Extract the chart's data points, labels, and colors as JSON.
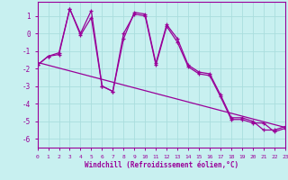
{
  "bg_color": "#c8f0f0",
  "line_color": "#990099",
  "grid_color": "#aadddd",
  "xlabel": "Windchill (Refroidissement éolien,°C)",
  "xlabel_color": "#990099",
  "tick_color": "#990099",
  "xlim": [
    0,
    23
  ],
  "ylim": [
    -6.5,
    1.8
  ],
  "yticks": [
    1,
    0,
    -1,
    -2,
    -3,
    -4,
    -5,
    -6
  ],
  "xticks": [
    0,
    1,
    2,
    3,
    4,
    5,
    6,
    7,
    8,
    9,
    10,
    11,
    12,
    13,
    14,
    15,
    16,
    17,
    18,
    19,
    20,
    21,
    22,
    23
  ],
  "s1_x": [
    0,
    1,
    2,
    3,
    4,
    5,
    6,
    7,
    8,
    9,
    10,
    11,
    12,
    13,
    14,
    15,
    16,
    17,
    18,
    19,
    20,
    21,
    22,
    23
  ],
  "s1_y": [
    -1.8,
    -1.3,
    -1.1,
    1.4,
    0.0,
    1.3,
    -3.0,
    -3.3,
    -0.3,
    1.2,
    1.1,
    -1.7,
    0.5,
    -0.3,
    -1.8,
    -2.2,
    -2.3,
    -3.5,
    -4.8,
    -4.8,
    -5.0,
    -5.5,
    -5.5,
    -5.3
  ],
  "s2_x": [
    0,
    1,
    2,
    3,
    4,
    5,
    6,
    7,
    8,
    9,
    10,
    11,
    12,
    13,
    14,
    15,
    16,
    17,
    18,
    19,
    20,
    21,
    22,
    23
  ],
  "s2_y": [
    -1.8,
    -1.3,
    -1.2,
    1.4,
    -0.1,
    0.9,
    -3.0,
    -3.3,
    0.0,
    1.1,
    1.0,
    -1.8,
    0.4,
    -0.5,
    -1.9,
    -2.3,
    -2.4,
    -3.6,
    -4.9,
    -4.9,
    -5.1,
    -5.1,
    -5.6,
    -5.4
  ],
  "trend_x": [
    0,
    23
  ],
  "trend_y": [
    -1.65,
    -5.35
  ],
  "figw": 3.2,
  "figh": 2.0,
  "dpi": 100
}
